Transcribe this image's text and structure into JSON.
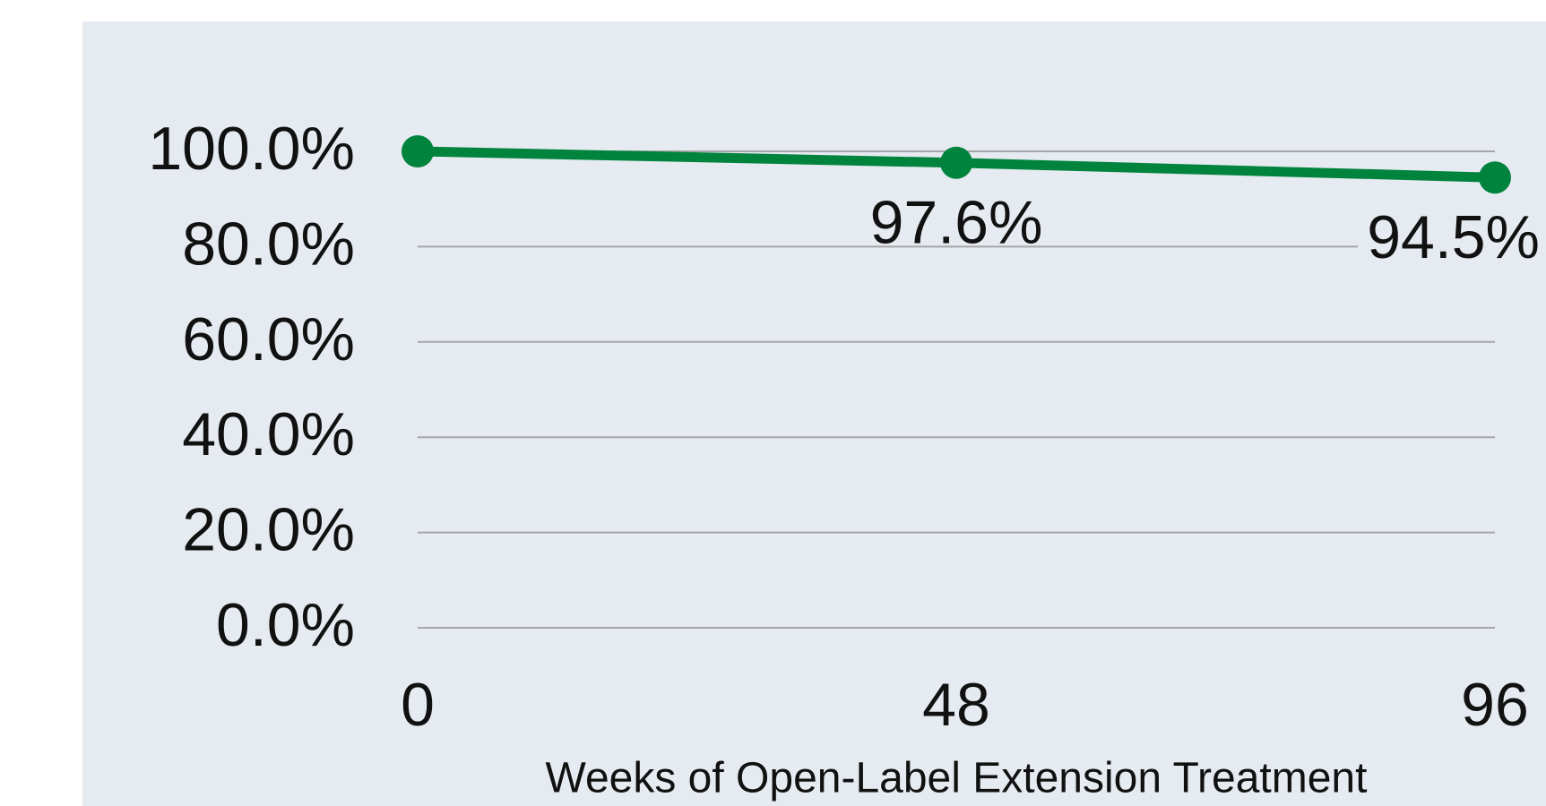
{
  "chart_data": {
    "type": "line",
    "x_label": "Weeks of Open-Label Extension Treatment",
    "x": [
      0,
      48,
      96
    ],
    "series": [
      {
        "color": "#00843d",
        "values": [
          100,
          97.6,
          94.5
        ],
        "value_labels": [
          null,
          "97.6%",
          "94.5%"
        ]
      }
    ],
    "xlim": [
      0,
      96
    ],
    "xticks": [
      0,
      48,
      96
    ],
    "ylim": [
      0,
      100
    ],
    "yticks": [
      {
        "value": 0,
        "label": "0.0%"
      },
      {
        "value": 20,
        "label": "20.0%"
      },
      {
        "value": 40,
        "label": "40.0%"
      },
      {
        "value": 60,
        "label": "60.0%"
      },
      {
        "value": 80,
        "label": "80.0%"
      },
      {
        "value": 100,
        "label": "100.0%"
      }
    ],
    "grid": true
  }
}
